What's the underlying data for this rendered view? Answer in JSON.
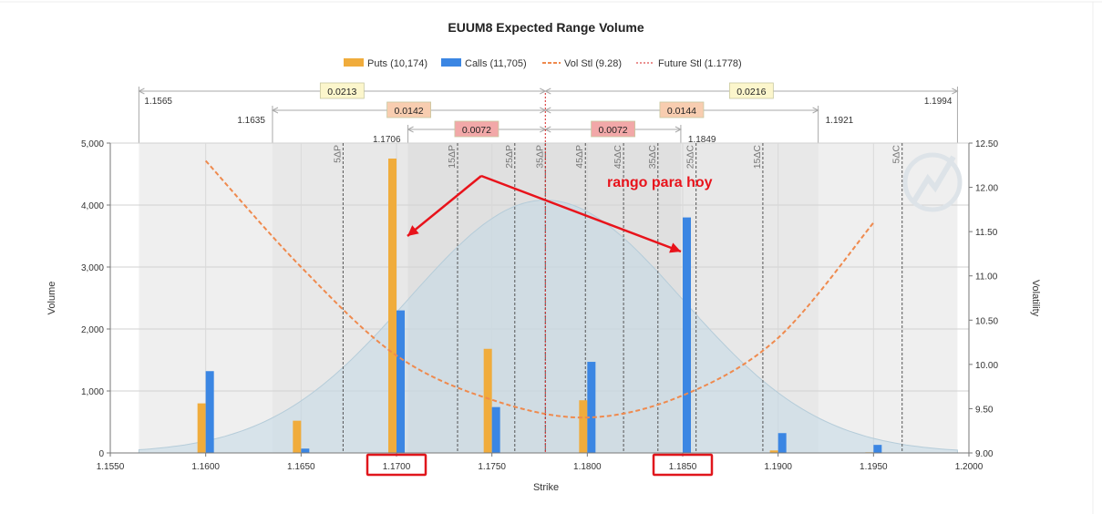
{
  "chart_data": {
    "type": "bar",
    "title": "EUUM8 Expected Range Volume",
    "xlabel": "Strike",
    "ylabel": "Volume",
    "y2label": "Volatility",
    "xlim": [
      1.155,
      1.2
    ],
    "ylim": [
      0,
      5000
    ],
    "y2lim": [
      9.0,
      12.5
    ],
    "x_ticks": [
      "1.1550",
      "1.1600",
      "1.1650",
      "1.1700",
      "1.1750",
      "1.1800",
      "1.1850",
      "1.1900",
      "1.1950",
      "1.2000"
    ],
    "y_ticks": [
      "0",
      "1,000",
      "2,000",
      "3,000",
      "4,000",
      "5,000"
    ],
    "y2_ticks": [
      "9.00",
      "9.50",
      "10.00",
      "10.50",
      "11.00",
      "11.50",
      "12.00",
      "12.50"
    ],
    "grid": true,
    "legend_position": "top-center",
    "strikes": [
      1.16,
      1.165,
      1.17,
      1.175,
      1.18,
      1.185,
      1.19,
      1.195
    ],
    "series": [
      {
        "name": "Puts (10,174)",
        "kind": "bar",
        "color": "#f0ac3c",
        "values": [
          800,
          520,
          4750,
          1680,
          850,
          0,
          40,
          10
        ]
      },
      {
        "name": "Calls (11,705)",
        "kind": "bar",
        "color": "#3b86e3",
        "values": [
          1320,
          70,
          2300,
          740,
          1470,
          3800,
          320,
          130
        ]
      },
      {
        "name": "Vol Stl (9.28)",
        "kind": "line",
        "color": "#ef8a4e",
        "x": [
          1.16,
          1.165,
          1.17,
          1.175,
          1.18,
          1.185,
          1.19,
          1.195
        ],
        "values": [
          12.3,
          11.1,
          10.1,
          9.6,
          9.4,
          9.65,
          10.3,
          11.6
        ]
      },
      {
        "name": "Future Stl (1.1778)",
        "kind": "vline",
        "color": "#d42020",
        "x": 1.1778
      }
    ],
    "distribution": {
      "mean": 1.1778,
      "sd": 0.0072,
      "peak_volume": 4080
    },
    "ranges": [
      {
        "width": "0.0072",
        "low": 1.1706,
        "high": 1.1849,
        "low_label": "1.1706",
        "high_label": "1.1849",
        "color": "#f2a8a8"
      },
      {
        "width": "0.0142",
        "width_high": "0.0144",
        "low": 1.1635,
        "high": 1.1921,
        "low_label": "1.1635",
        "high_label": "1.1921",
        "color": "#f8cdb0"
      },
      {
        "width": "0.0213",
        "width_high": "0.0216",
        "low": 1.1565,
        "high": 1.1994,
        "low_label": "1.1565",
        "high_label": "1.1994",
        "color": "#fcf6cc"
      }
    ],
    "delta_lines": [
      {
        "label": "5ΔP",
        "x": 1.1672
      },
      {
        "label": "15ΔP",
        "x": 1.1732
      },
      {
        "label": "25ΔP",
        "x": 1.1762
      },
      {
        "label": "35ΔP",
        "x": 1.1778
      },
      {
        "label": "45ΔP",
        "x": 1.1799
      },
      {
        "label": "45ΔC",
        "x": 1.1819
      },
      {
        "label": "35ΔC",
        "x": 1.1837
      },
      {
        "label": "25ΔC",
        "x": 1.1857
      },
      {
        "label": "15ΔC",
        "x": 1.1892
      },
      {
        "label": "5ΔC",
        "x": 1.1965
      }
    ],
    "annotation": {
      "text": "rango para hoy",
      "arrow_targets": [
        1.17,
        1.185
      ],
      "highlighted_ticks": [
        "1.1700",
        "1.1850"
      ]
    }
  }
}
